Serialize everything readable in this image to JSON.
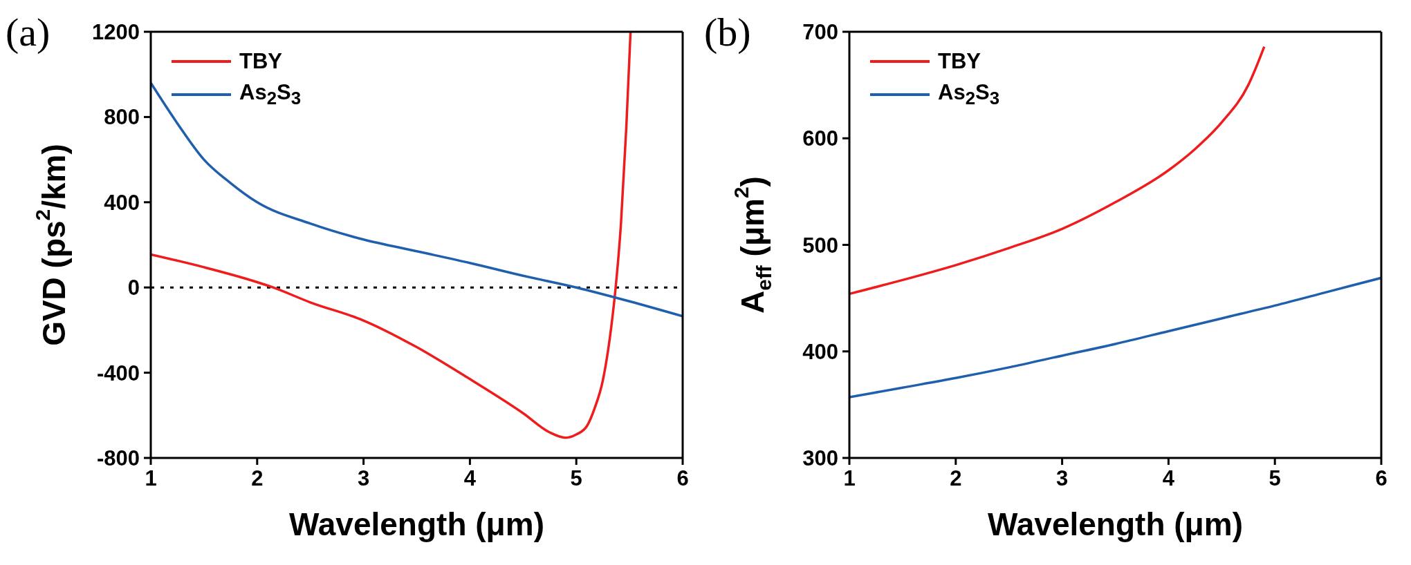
{
  "chart_data": [
    {
      "type": "line",
      "xlabel": "Wavelength (μm)",
      "ylabel": "GVD (ps$^{2}$/km)",
      "annotations": [
        "(a)"
      ],
      "xlim": [
        1,
        6
      ],
      "xticks": [
        1,
        2,
        3,
        4,
        5,
        6
      ],
      "ylim": [
        -800,
        1200
      ],
      "yticks": [
        -800,
        -400,
        0,
        400,
        800,
        1200
      ],
      "legend": "top left",
      "line_style": "solid",
      "ref_lines": [
        {
          "axis": "y",
          "value": 0,
          "color": "#000000",
          "line_style": "dotted"
        }
      ],
      "series": [
        {
          "name": "TBY",
          "color": "#ee1c1c",
          "x": [
            1,
            1.5,
            2,
            2.15,
            2.5,
            3,
            3.5,
            4,
            4.5,
            4.75,
            4.9,
            5,
            5.1,
            5.17,
            5.25,
            5.33,
            5.37,
            5.42,
            5.47,
            5.51
          ],
          "values": [
            155,
            95,
            25,
            0,
            -70,
            -155,
            -280,
            -430,
            -590,
            -680,
            -705,
            -690,
            -650,
            -570,
            -435,
            -180,
            0,
            300,
            750,
            1200
          ]
        },
        {
          "name": "As$_{2}$S$_{3}$",
          "color": "#1f5fae",
          "x": [
            1,
            1.25,
            1.5,
            1.75,
            2,
            2.5,
            3,
            3.5,
            4,
            4.5,
            5,
            5.5,
            6
          ],
          "values": [
            960,
            770,
            600,
            490,
            400,
            300,
            225,
            170,
            115,
            55,
            0,
            -65,
            -135
          ]
        }
      ]
    },
    {
      "type": "line",
      "xlabel": "Wavelength (μm)",
      "ylabel": "A$_{eff}$ (μm$^{2}$)",
      "annotations": [
        "(b)"
      ],
      "xlim": [
        1,
        6
      ],
      "xticks": [
        1,
        2,
        3,
        4,
        5,
        6
      ],
      "ylim": [
        300,
        700
      ],
      "yticks": [
        300,
        400,
        500,
        600,
        700
      ],
      "legend": "top left",
      "line_style": "solid",
      "series": [
        {
          "name": "TBY",
          "color": "#ee1c1c",
          "x": [
            1,
            1.5,
            2,
            2.5,
            3,
            3.5,
            4,
            4.25,
            4.5,
            4.75,
            4.9
          ],
          "values": [
            454,
            467,
            481,
            497,
            515,
            540,
            570,
            590,
            615,
            650,
            686
          ]
        },
        {
          "name": "As$_{2}$S$_{3}$",
          "color": "#1f5fae",
          "x": [
            1,
            1.5,
            2,
            2.5,
            3,
            3.5,
            4,
            4.5,
            5,
            5.5,
            6
          ],
          "values": [
            357,
            366,
            375,
            385,
            396,
            407,
            419,
            431,
            443,
            456,
            469
          ]
        }
      ]
    }
  ]
}
